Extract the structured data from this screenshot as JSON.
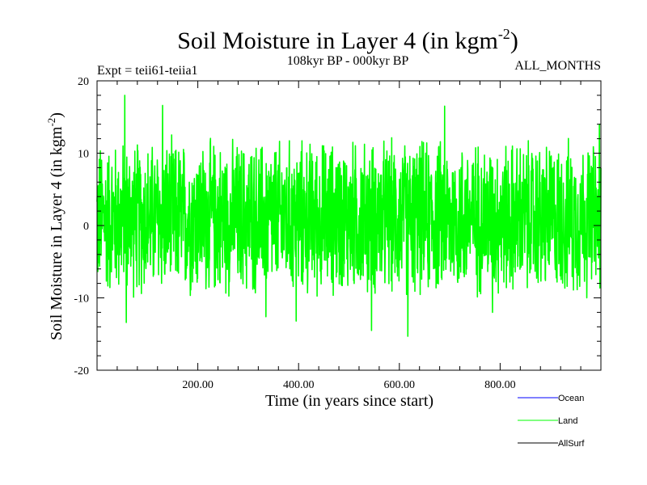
{
  "chart_data": {
    "type": "line",
    "title": "Soil Moisture in Layer 4 (in kgm",
    "title_sup": "-2",
    "title_close": ")",
    "subtitle_left": "Expt = teii61-teiia1",
    "subtitle_center": "108kyr BP - 000kyr BP",
    "subtitle_right": "ALL_MONTHS",
    "xlabel": "Time (in years since start)",
    "ylabel": "Soil Moisture in Layer 4 (in kgm",
    "ylabel_sup": "-2",
    "ylabel_close": ")",
    "xlim": [
      0,
      1000
    ],
    "ylim": [
      -20,
      20
    ],
    "xticks": [
      200,
      400,
      600,
      800
    ],
    "xtick_labels": [
      "200.00",
      "400.00",
      "600.00",
      "800.00"
    ],
    "yticks": [
      20,
      10,
      0,
      -10,
      -20
    ],
    "ytick_labels": [
      "20",
      "10",
      "0",
      "-10",
      "-20"
    ],
    "legend_position": "bottom-right, outside plot",
    "series": [
      {
        "name": "Ocean",
        "color": "#0000ff",
        "values": []
      },
      {
        "name": "Land",
        "color": "#00ff00",
        "noise_mean": 1,
        "noise_amplitude": 12,
        "peaks": [
          [
            55,
            18.0
          ],
          [
            130,
            16.6
          ],
          [
            690,
            16.5
          ],
          [
            997,
            14.0
          ],
          [
            58,
            -13.4
          ],
          [
            545,
            -14.5
          ],
          [
            617,
            -15.3
          ],
          [
            335,
            -12.6
          ],
          [
            785,
            -12.0
          ],
          [
            395,
            -13.2
          ]
        ]
      },
      {
        "name": "AllSurf",
        "color": "#000000",
        "values": []
      }
    ]
  }
}
